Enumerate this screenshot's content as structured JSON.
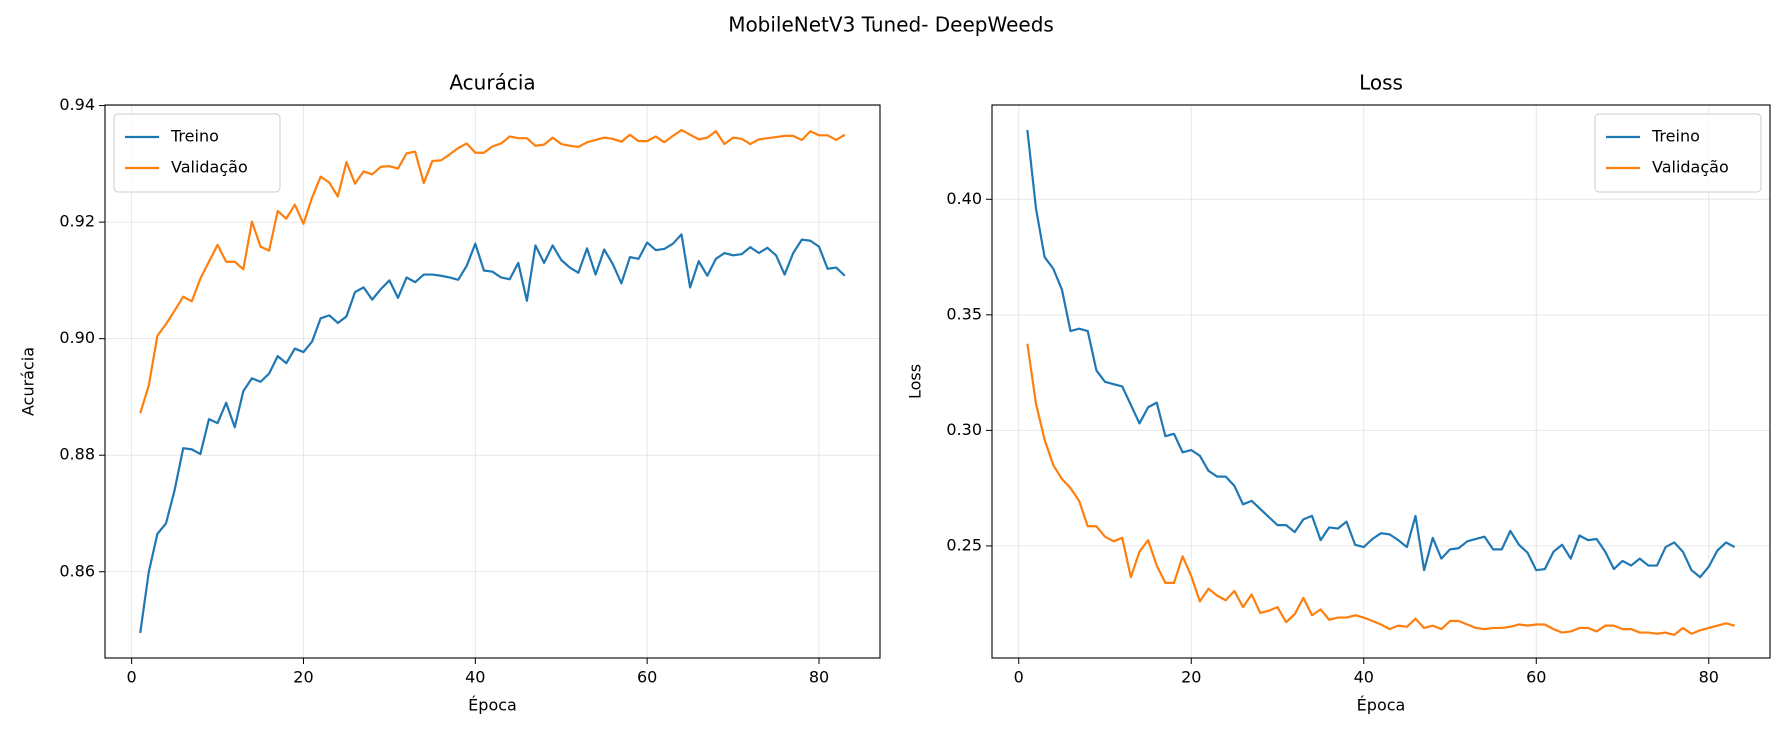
{
  "title": "MobileNetV3 Tuned- DeepWeeds",
  "chart_data": [
    {
      "type": "line",
      "title": "Acurácia",
      "x_label": "Época",
      "y_label": "Acurácia",
      "x": [
        1,
        2,
        3,
        4,
        5,
        6,
        7,
        8,
        9,
        10,
        11,
        12,
        13,
        14,
        15,
        16,
        17,
        18,
        19,
        20,
        21,
        22,
        23,
        24,
        25,
        26,
        27,
        28,
        29,
        30,
        31,
        32,
        33,
        34,
        35,
        36,
        37,
        38,
        39,
        40,
        41,
        42,
        43,
        44,
        45,
        46,
        47,
        48,
        49,
        50,
        51,
        52,
        53,
        54,
        55,
        56,
        57,
        58,
        59,
        60,
        61,
        62,
        63,
        64,
        65,
        66,
        67,
        68,
        69,
        70,
        71,
        72,
        73,
        74,
        75,
        76,
        77,
        78,
        79,
        80,
        81,
        82,
        83
      ],
      "series": [
        {
          "name": "Treino",
          "color": "#1f77b4",
          "values": [
            0.8495,
            0.86,
            0.8665,
            0.8683,
            0.874,
            0.8812,
            0.881,
            0.8802,
            0.8862,
            0.8855,
            0.889,
            0.8848,
            0.891,
            0.8932,
            0.8926,
            0.894,
            0.897,
            0.8958,
            0.8983,
            0.8977,
            0.8995,
            0.9035,
            0.904,
            0.9027,
            0.9038,
            0.908,
            0.9088,
            0.9067,
            0.9085,
            0.91,
            0.907,
            0.9105,
            0.9097,
            0.911,
            0.911,
            0.9108,
            0.9105,
            0.9101,
            0.9125,
            0.9163,
            0.9117,
            0.9115,
            0.9105,
            0.9102,
            0.913,
            0.9065,
            0.916,
            0.913,
            0.916,
            0.9135,
            0.9122,
            0.9113,
            0.9155,
            0.911,
            0.9153,
            0.9128,
            0.9095,
            0.914,
            0.9137,
            0.9165,
            0.9152,
            0.9154,
            0.9163,
            0.9179,
            0.9088,
            0.9133,
            0.9108,
            0.9137,
            0.9147,
            0.9143,
            0.9145,
            0.9157,
            0.9147,
            0.9156,
            0.9143,
            0.911,
            0.9147,
            0.917,
            0.9168,
            0.9158,
            0.912,
            0.9122,
            0.9108
          ]
        },
        {
          "name": "Validação",
          "color": "#ff7f0e",
          "values": [
            0.8872,
            0.892,
            0.9005,
            0.9025,
            0.9048,
            0.9072,
            0.9064,
            0.9103,
            0.9132,
            0.9161,
            0.9132,
            0.9132,
            0.9119,
            0.9201,
            0.9158,
            0.9151,
            0.9219,
            0.9206,
            0.923,
            0.9197,
            0.9242,
            0.9278,
            0.9268,
            0.9244,
            0.9303,
            0.9266,
            0.9287,
            0.9282,
            0.9295,
            0.9296,
            0.9292,
            0.9318,
            0.9321,
            0.9267,
            0.9305,
            0.9306,
            0.9316,
            0.9327,
            0.9335,
            0.9319,
            0.9319,
            0.933,
            0.9335,
            0.9347,
            0.9344,
            0.9344,
            0.9331,
            0.9333,
            0.9345,
            0.9334,
            0.9331,
            0.9329,
            0.9337,
            0.9341,
            0.9345,
            0.9343,
            0.9338,
            0.935,
            0.9339,
            0.9339,
            0.9347,
            0.9337,
            0.9348,
            0.9358,
            0.935,
            0.9342,
            0.9345,
            0.9356,
            0.9334,
            0.9345,
            0.9343,
            0.9334,
            0.9342,
            0.9344,
            0.9346,
            0.9348,
            0.9348,
            0.9341,
            0.9356,
            0.9349,
            0.9349,
            0.9341,
            0.935
          ]
        }
      ],
      "xlim": [
        -3.1,
        87.1
      ],
      "xticks": [
        0,
        20,
        40,
        60,
        80
      ],
      "ylim": [
        0.8452,
        0.9401
      ],
      "yticks": [
        0.86,
        0.88,
        {
          "value": 0.9,
          "label": "0.90"
        },
        0.92,
        0.94
      ],
      "grid": true,
      "legend": "upper left"
    },
    {
      "type": "line",
      "title": "Loss",
      "x_label": "Época",
      "y_label": "Loss",
      "x": [
        1,
        2,
        3,
        4,
        5,
        6,
        7,
        8,
        9,
        10,
        11,
        12,
        13,
        14,
        15,
        16,
        17,
        18,
        19,
        20,
        21,
        22,
        23,
        24,
        25,
        26,
        27,
        28,
        29,
        30,
        31,
        32,
        33,
        34,
        35,
        36,
        37,
        38,
        39,
        40,
        41,
        42,
        43,
        44,
        45,
        46,
        47,
        48,
        49,
        50,
        51,
        52,
        53,
        54,
        55,
        56,
        57,
        58,
        59,
        60,
        61,
        62,
        63,
        64,
        65,
        66,
        67,
        68,
        69,
        70,
        71,
        72,
        73,
        74,
        75,
        76,
        77,
        78,
        79,
        80,
        81,
        82,
        83
      ],
      "series": [
        {
          "name": "Treino",
          "color": "#1f77b4",
          "values": [
            0.43,
            0.396,
            0.375,
            0.37,
            0.361,
            0.343,
            0.344,
            0.343,
            0.326,
            0.321,
            0.32,
            0.319,
            0.311,
            0.303,
            0.31,
            0.312,
            0.2975,
            0.2985,
            0.2905,
            0.2915,
            0.289,
            0.2825,
            0.28,
            0.28,
            0.276,
            0.268,
            0.2695,
            0.266,
            0.2625,
            0.259,
            0.259,
            0.256,
            0.2615,
            0.263,
            0.2525,
            0.258,
            0.2575,
            0.2605,
            0.2505,
            0.2495,
            0.253,
            0.2555,
            0.255,
            0.2525,
            0.2495,
            0.263,
            0.2395,
            0.2535,
            0.2445,
            0.2485,
            0.249,
            0.252,
            0.253,
            0.254,
            0.2485,
            0.2485,
            0.2565,
            0.2505,
            0.247,
            0.2395,
            0.24,
            0.2475,
            0.2505,
            0.2445,
            0.2545,
            0.2525,
            0.253,
            0.2475,
            0.24,
            0.2435,
            0.2415,
            0.2445,
            0.2415,
            0.2415,
            0.2495,
            0.2515,
            0.2475,
            0.2395,
            0.2365,
            0.241,
            0.248,
            0.2515,
            0.2495
          ]
        },
        {
          "name": "Validação",
          "color": "#ff7f0e",
          "values": [
            0.3375,
            0.3115,
            0.296,
            0.285,
            0.279,
            0.275,
            0.2695,
            0.2585,
            0.2585,
            0.254,
            0.252,
            0.2535,
            0.2365,
            0.2475,
            0.2525,
            0.2415,
            0.234,
            0.234,
            0.2455,
            0.237,
            0.226,
            0.2315,
            0.2285,
            0.2265,
            0.2305,
            0.2235,
            0.229,
            0.221,
            0.222,
            0.2235,
            0.217,
            0.2205,
            0.2275,
            0.22,
            0.2225,
            0.218,
            0.219,
            0.219,
            0.22,
            0.219,
            0.2175,
            0.216,
            0.214,
            0.2155,
            0.215,
            0.2185,
            0.2145,
            0.2155,
            0.214,
            0.2175,
            0.2175,
            0.216,
            0.2145,
            0.214,
            0.2145,
            0.2145,
            0.215,
            0.216,
            0.2155,
            0.216,
            0.216,
            0.214,
            0.2125,
            0.213,
            0.2145,
            0.2145,
            0.213,
            0.2155,
            0.2155,
            0.214,
            0.214,
            0.2125,
            0.2125,
            0.212,
            0.2125,
            0.2115,
            0.2145,
            0.212,
            0.2135,
            0.2145,
            0.2155,
            0.2165,
            0.2155
          ]
        }
      ],
      "xlim": [
        -3.1,
        87.1
      ],
      "xticks": [
        0,
        20,
        40,
        60,
        80
      ],
      "ylim": [
        0.2015,
        0.4408
      ],
      "yticks": [
        0.25,
        {
          "value": 0.3,
          "label": "0.30"
        },
        0.35,
        {
          "value": 0.4,
          "label": "0.40"
        }
      ],
      "grid": true,
      "legend": "upper right"
    }
  ]
}
